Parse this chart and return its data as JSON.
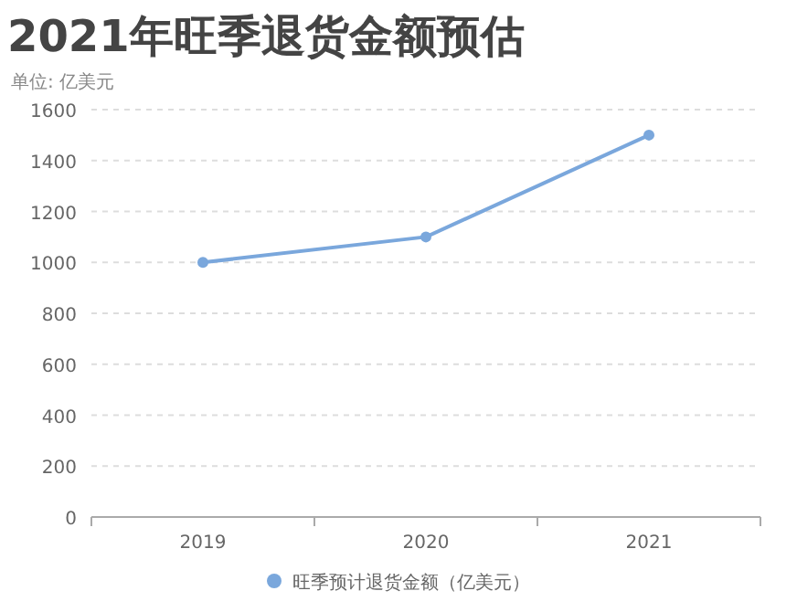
{
  "chart_data": {
    "type": "line",
    "title": "2021年旺季退货金额预估",
    "subtitle": "单位: 亿美元",
    "categories": [
      "2019",
      "2020",
      "2021"
    ],
    "series": [
      {
        "name": "旺季预计退货金额（亿美元）",
        "color": "#7aa7dc",
        "values": [
          1000,
          1100,
          1500
        ]
      }
    ],
    "ylim": [
      0,
      1600
    ],
    "yticks": [
      0,
      200,
      400,
      600,
      800,
      1000,
      1200,
      1400,
      1600
    ],
    "grid": "y",
    "legend": "bottom",
    "marker": "circle",
    "line_style": "solid"
  }
}
